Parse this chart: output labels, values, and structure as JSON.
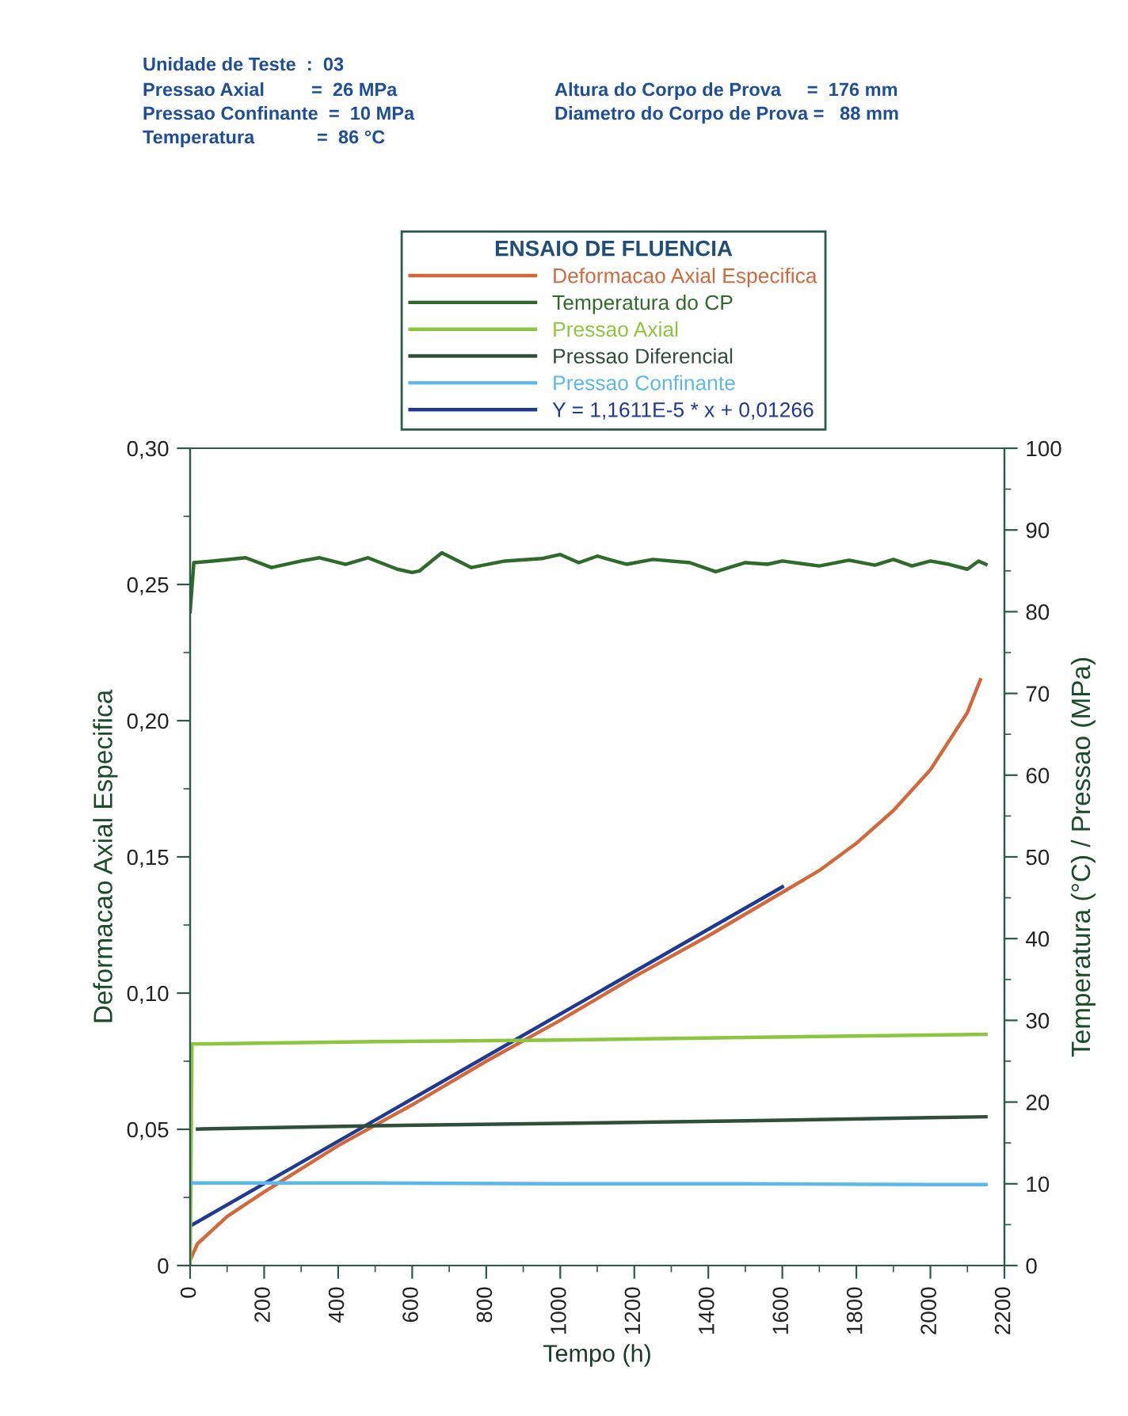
{
  "chart_data": {
    "type": "line",
    "legend_title": "ENSAIO DE FLUENCIA",
    "xlabel": "Tempo (h)",
    "ylabel": "Deformacao Axial Especifica",
    "y2label": "Temperatura (°C) / Pressao (MPa)",
    "annotations": [
      "Unidade de Teste  :  03",
      "Pressao Axial         =  26 MPa",
      "Pressao Confinante  =  10 MPa",
      "Temperatura            =  86 °C",
      "Altura do Corpo de Prova     =  176 mm",
      "Diametro do Corpo de Prova =   88 mm"
    ],
    "series": [
      {
        "name": "Deformacao Axial Especifica",
        "color": "#d2693c",
        "x": [
          0,
          20,
          100,
          200,
          400,
          600,
          800,
          1000,
          1200,
          1400,
          1600,
          1700,
          1800,
          1900,
          2000,
          2100,
          2135
        ],
        "values": [
          0.002,
          0.008,
          0.018,
          0.027,
          0.044,
          0.059,
          0.075,
          0.09,
          0.106,
          0.121,
          0.137,
          0.145,
          0.155,
          0.167,
          0.182,
          0.203,
          0.215
        ]
      },
      {
        "name": "Temperatura do CP",
        "color": "#2e6b2a",
        "axis": "y2",
        "x": [
          0,
          10,
          60,
          150,
          220,
          300,
          350,
          420,
          480,
          560,
          600,
          620,
          680,
          760,
          850,
          950,
          1000,
          1050,
          1100,
          1180,
          1250,
          1350,
          1420,
          1500,
          1560,
          1600,
          1700,
          1780,
          1850,
          1900,
          1950,
          2000,
          2050,
          2100,
          2130,
          2150
        ],
        "values": [
          80,
          86,
          86.2,
          86.6,
          85.4,
          86.2,
          86.6,
          85.8,
          86.6,
          85.2,
          84.8,
          85.0,
          87.2,
          85.4,
          86.2,
          86.5,
          87.0,
          86.0,
          86.8,
          85.8,
          86.4,
          86.0,
          84.9,
          86.0,
          85.8,
          86.2,
          85.6,
          86.3,
          85.7,
          86.4,
          85.6,
          86.2,
          85.8,
          85.2,
          86.2,
          85.8
        ]
      },
      {
        "name": "Pressao Axial",
        "color": "#8cc63f",
        "axis": "y2",
        "x": [
          0,
          5,
          500,
          1000,
          1500,
          2000,
          2150
        ],
        "values": [
          0,
          27.1,
          27.4,
          27.6,
          27.9,
          28.2,
          28.3
        ]
      },
      {
        "name": "Pressao Diferencial",
        "color": "#2f4f3a",
        "axis": "y2",
        "x": [
          20,
          500,
          1000,
          1500,
          2000,
          2150
        ],
        "values": [
          16.7,
          17.1,
          17.4,
          17.7,
          18.1,
          18.2
        ]
      },
      {
        "name": "Pressao Confinante",
        "color": "#5bb8e8",
        "axis": "y2",
        "x": [
          0,
          500,
          1000,
          1500,
          2000,
          2150
        ],
        "values": [
          10.1,
          10.1,
          10.0,
          10.0,
          9.9,
          9.9
        ]
      },
      {
        "name": "Y = 1,1611E-5 * x + 0,01266",
        "color": "#1f3a93",
        "x": [
          0,
          1600
        ],
        "values": [
          0.0145,
          0.139
        ]
      }
    ],
    "xlim": [
      0,
      2200
    ],
    "xticks": [
      0,
      200,
      400,
      600,
      800,
      1000,
      1200,
      1400,
      1600,
      1800,
      2000,
      2200
    ],
    "ylim": [
      0,
      0.3
    ],
    "yticks": [
      {
        "value": 0,
        "label": "0"
      },
      {
        "value": 0.05,
        "label": "0,05"
      },
      {
        "value": 0.1,
        "label": "0,10"
      },
      {
        "value": 0.15,
        "label": "0,15"
      },
      {
        "value": 0.2,
        "label": "0,20"
      },
      {
        "value": 0.25,
        "label": "0,25"
      },
      {
        "value": 0.3,
        "label": "0,30"
      }
    ],
    "y2lim": [
      0,
      100
    ],
    "y2ticks": [
      0,
      10,
      20,
      30,
      40,
      50,
      60,
      70,
      80,
      90,
      100
    ],
    "legend": "top",
    "grid": false,
    "marker": "none",
    "line_style": "solid"
  }
}
